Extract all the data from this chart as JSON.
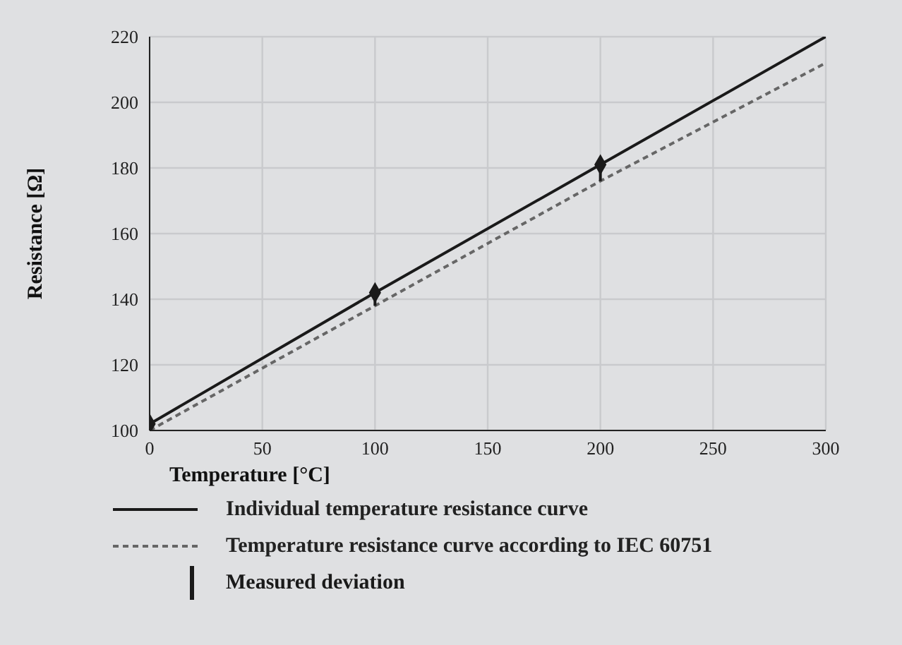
{
  "chart_data": {
    "type": "line",
    "xlabel": "Temperature [°C]",
    "ylabel": "Resistance [Ω]",
    "xlim": [
      0,
      300
    ],
    "xticks": [
      0,
      50,
      100,
      150,
      200,
      250,
      300
    ],
    "ylim": [
      100,
      220
    ],
    "yticks": [
      100,
      120,
      140,
      160,
      180,
      200,
      220
    ],
    "grid": true,
    "legend": "bottom",
    "series": [
      {
        "name": "Individual temperature resistance curve",
        "color": "#1a1a1a",
        "line_style": "solid",
        "marker": "none",
        "x": [
          0,
          100,
          200,
          300
        ],
        "values": [
          102,
          142,
          181,
          220
        ]
      },
      {
        "name": "Temperature resistance curve according to IEC 60751",
        "color": "#666666",
        "line_style": "dashed",
        "marker": "none",
        "x": [
          0,
          100,
          200,
          300
        ],
        "values": [
          100,
          138,
          176,
          212
        ]
      },
      {
        "name": "Measured deviation",
        "type": "scatter",
        "color": "#1a1a1a",
        "marker": "diamond",
        "x": [
          0,
          100,
          200
        ],
        "values": [
          102,
          142,
          181
        ],
        "errors": [
          null,
          [
            138,
            142
          ],
          [
            176,
            181
          ]
        ]
      }
    ]
  }
}
